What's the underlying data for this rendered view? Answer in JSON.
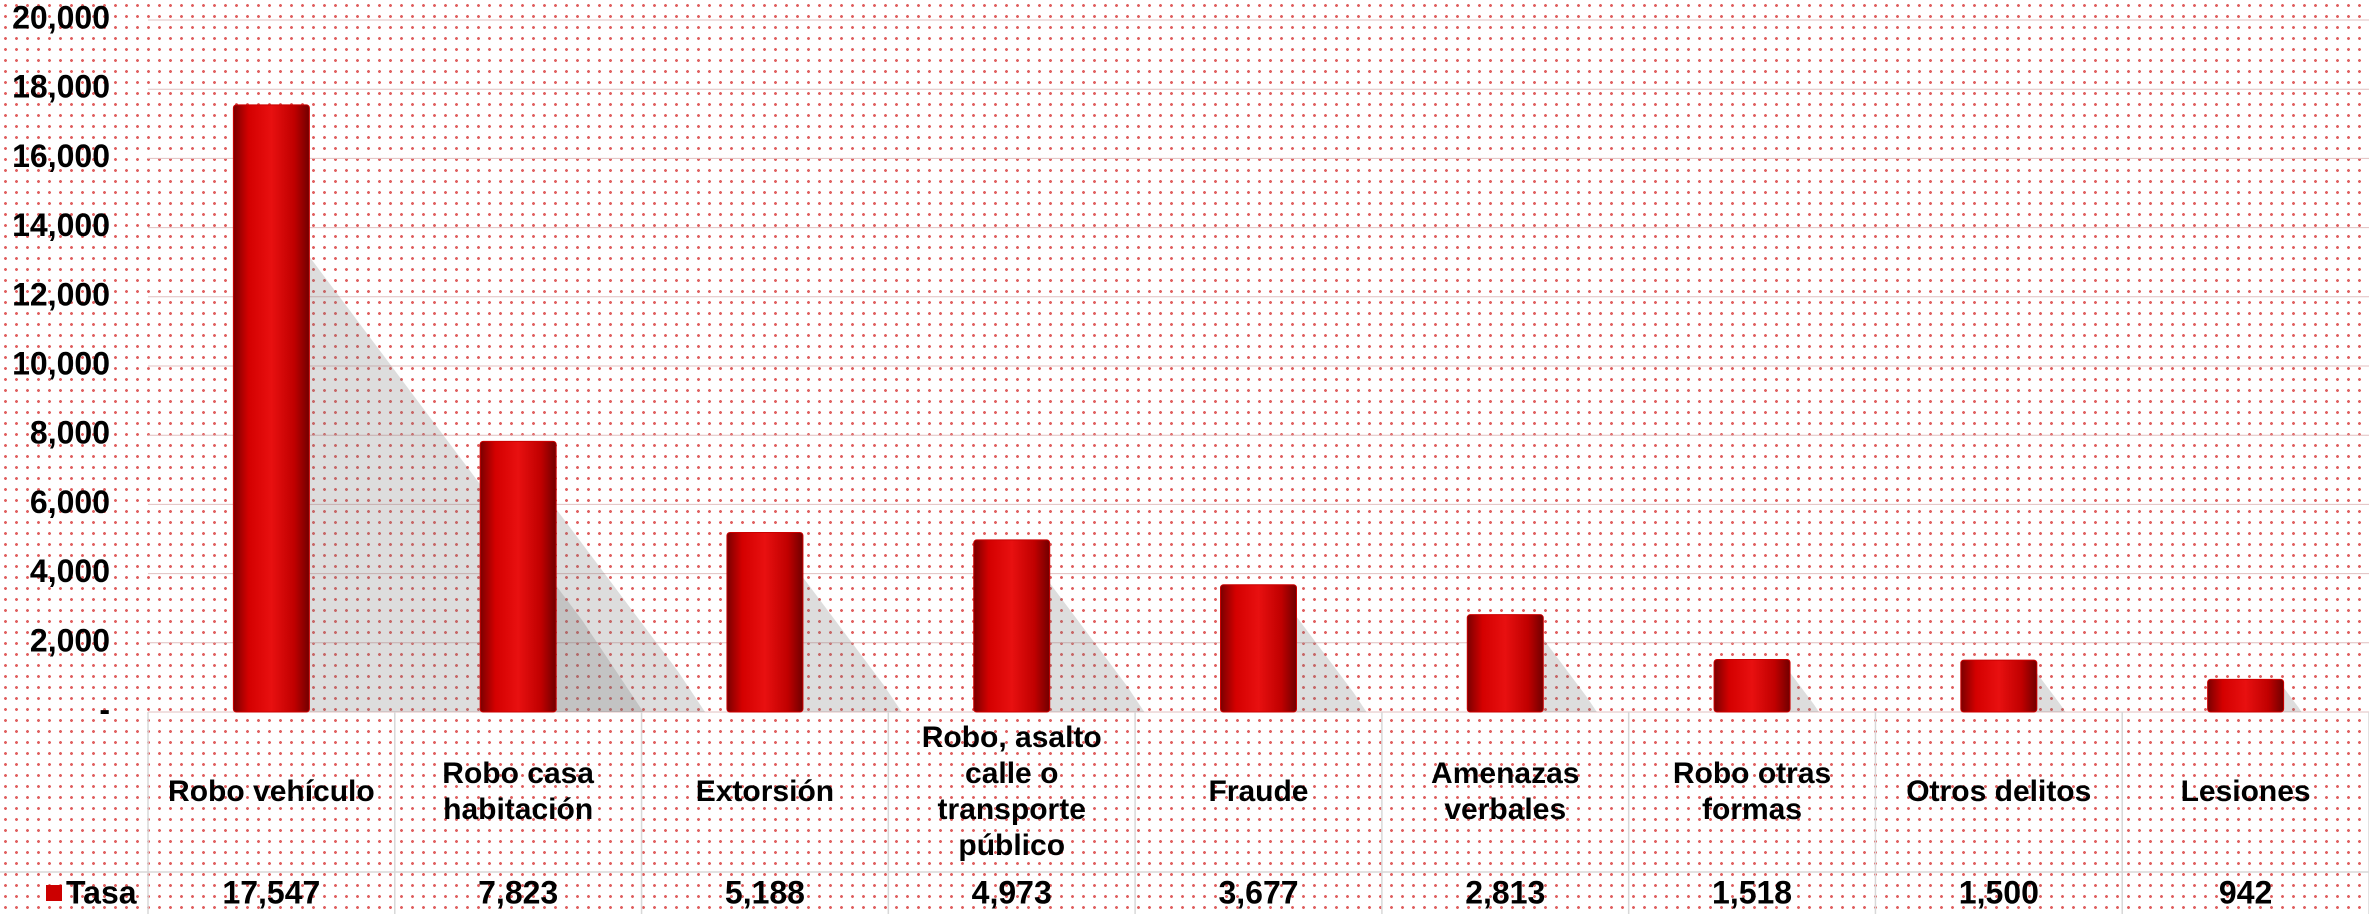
{
  "chart_data": {
    "type": "bar",
    "categories": [
      "Robo vehículo",
      "Robo casa habitación",
      "Extorsión",
      "Robo, asalto calle o transporte público",
      "Fraude",
      "Amenazas verbales",
      "Robo otras formas",
      "Otros delitos",
      "Lesiones"
    ],
    "series": [
      {
        "name": "Tasa",
        "color": "#cc0000",
        "values": [
          17547,
          7823,
          5188,
          4973,
          3677,
          2813,
          1518,
          1500,
          942
        ],
        "value_labels": [
          "17,547",
          "7,823",
          "5,188",
          "4,973",
          "3,677",
          "2,813",
          "1,518",
          "1,500",
          "942"
        ]
      }
    ],
    "ylim": [
      0,
      20000
    ],
    "yticks": [
      {
        "value": 0,
        "label": "-"
      },
      {
        "value": 2000,
        "label": "2,000"
      },
      {
        "value": 4000,
        "label": "4,000"
      },
      {
        "value": 6000,
        "label": "6,000"
      },
      {
        "value": 8000,
        "label": "8,000"
      },
      {
        "value": 10000,
        "label": "10,000"
      },
      {
        "value": 12000,
        "label": "12,000"
      },
      {
        "value": 14000,
        "label": "14,000"
      },
      {
        "value": 16000,
        "label": "16,000"
      },
      {
        "value": 18000,
        "label": "18,000"
      },
      {
        "value": 20000,
        "label": "20,000"
      }
    ],
    "grid": true
  }
}
